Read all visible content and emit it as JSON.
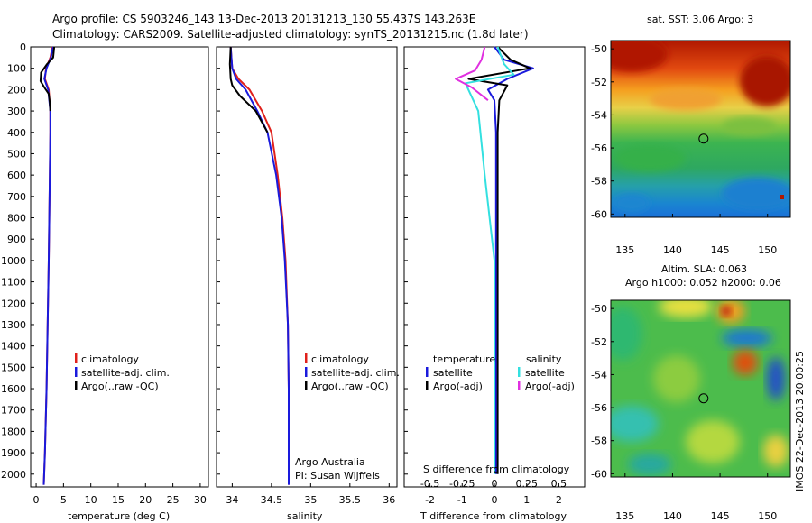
{
  "figure": {
    "title_line1": "Argo profile: CS 5903246_143 13-Dec-2013 20131213_130 55.437S 143.263E",
    "title_line2": "Climatology: CARS2009. Satellite-adjusted climatology: synTS_20131215.nc (1.8d later)",
    "side_stamp": "IMOS 22-Dec-2013 20:00:25"
  },
  "colors": {
    "climatology": "#e0201b",
    "satellite": "#1a1adc",
    "argo": "#000000",
    "salinity_satellite": "#33e0e0",
    "salinity_argo": "#e030e0"
  },
  "chart_data": [
    {
      "type": "line",
      "panel": "temperature",
      "xlabel": "temperature (deg C)",
      "ylabel": "",
      "xlim": [
        -1,
        31.5
      ],
      "ylim": [
        2060,
        0
      ],
      "xticks": [
        "0",
        "5",
        "10",
        "15",
        "20",
        "25",
        "30"
      ],
      "yticks": [
        "0",
        "100",
        "200",
        "300",
        "400",
        "500",
        "600",
        "700",
        "800",
        "900",
        "1000",
        "1100",
        "1200",
        "1300",
        "1400",
        "1500",
        "1600",
        "1700",
        "1800",
        "1900",
        "2000"
      ],
      "legend": [
        "climatology",
        "satellite-adj. clim.",
        "Argo(..raw -QC)"
      ],
      "series": [
        {
          "name": "climatology",
          "x": [
            3.0,
            2.6,
            1.8,
            1.6,
            2.3,
            2.6,
            2.6,
            2.5,
            2.4,
            2.3,
            2.1,
            1.9,
            1.6,
            1.4
          ],
          "y": [
            0,
            50,
            100,
            150,
            200,
            300,
            400,
            600,
            800,
            1000,
            1300,
            1600,
            1900,
            2050
          ]
        },
        {
          "name": "satellite-adj. clim.",
          "x": [
            3.1,
            2.7,
            1.9,
            1.5,
            2.2,
            2.6,
            2.6,
            2.5,
            2.4,
            2.3,
            2.1,
            1.9,
            1.6,
            1.4
          ],
          "y": [
            0,
            50,
            100,
            150,
            200,
            300,
            400,
            600,
            800,
            1000,
            1300,
            1600,
            1900,
            2050
          ]
        },
        {
          "name": "Argo(..raw -QC)",
          "x": [
            3.3,
            3.1,
            2.0,
            0.9,
            0.8,
            1.5,
            2.3,
            2.5,
            2.6
          ],
          "y": [
            0,
            50,
            80,
            120,
            160,
            190,
            220,
            260,
            300
          ]
        }
      ]
    },
    {
      "type": "line",
      "panel": "salinity",
      "xlabel": "salinity",
      "ylabel": "",
      "xlim": [
        33.8,
        36.1
      ],
      "ylim": [
        2060,
        0
      ],
      "xticks": [
        "34",
        "34.5",
        "35",
        "35.5",
        "36"
      ],
      "legend": [
        "climatology",
        "satellite-adj. clim.",
        "Argo(..raw -QC)"
      ],
      "annotation": [
        "Argo Australia",
        "PI: Susan Wijffels"
      ],
      "series": [
        {
          "name": "climatology",
          "x": [
            33.98,
            33.99,
            34.0,
            34.08,
            34.22,
            34.38,
            34.5,
            34.58,
            34.64,
            34.68,
            34.71,
            34.72,
            34.72,
            34.72
          ],
          "y": [
            0,
            50,
            100,
            150,
            200,
            300,
            400,
            600,
            800,
            1000,
            1300,
            1600,
            1900,
            2050
          ]
        },
        {
          "name": "satellite-adj. clim.",
          "x": [
            33.98,
            33.99,
            34.0,
            34.05,
            34.17,
            34.32,
            34.45,
            34.56,
            34.63,
            34.67,
            34.71,
            34.72,
            34.72,
            34.72
          ],
          "y": [
            0,
            50,
            100,
            150,
            200,
            300,
            400,
            600,
            800,
            1000,
            1300,
            1600,
            1900,
            2050
          ]
        },
        {
          "name": "Argo(..raw -QC)",
          "x": [
            33.98,
            33.97,
            33.98,
            34.0,
            34.1,
            34.3,
            34.45
          ],
          "y": [
            0,
            80,
            150,
            180,
            230,
            300,
            400
          ]
        }
      ]
    },
    {
      "type": "line",
      "panel": "differences",
      "xlabel": "T difference from climatology",
      "top_label": "S difference from climatology",
      "xlim": [
        -2.8,
        2.8
      ],
      "ylim": [
        2060,
        0
      ],
      "xticks": [
        "-2",
        "-1",
        "0",
        "1",
        "2"
      ],
      "sticks": [
        "-0.5",
        "-0.25",
        "0",
        "0.25",
        "0.5"
      ],
      "legend_left_title": "temperature",
      "legend_right_title": "salinity",
      "legend_left": [
        "satellite",
        "Argo(-adj)"
      ],
      "legend_right": [
        "satellite",
        "Argo(-adj)"
      ],
      "series": [
        {
          "name": "temperature satellite",
          "x": [
            0.0,
            0.3,
            1.2,
            0.4,
            -0.2,
            0.0,
            0.05,
            0.05,
            0.05
          ],
          "y": [
            0,
            60,
            100,
            150,
            200,
            250,
            400,
            1000,
            2000
          ]
        },
        {
          "name": "temperature Argo(-adj)",
          "x": [
            0.1,
            0.5,
            1.1,
            -0.8,
            0.4,
            0.15,
            0.1,
            0.1,
            0.1
          ],
          "y": [
            0,
            60,
            100,
            150,
            180,
            250,
            400,
            1000,
            2000
          ]
        },
        {
          "name": "salinity satellite",
          "x": [
            0.1,
            0.3,
            0.6,
            -0.9,
            -0.5,
            -0.3,
            0.0,
            0.0
          ],
          "y": [
            0,
            80,
            130,
            170,
            300,
            600,
            1000,
            2000
          ]
        },
        {
          "name": "salinity Argo(-adj)",
          "x": [
            -0.3,
            -0.4,
            -0.6,
            -1.2,
            -0.7,
            -0.2
          ],
          "y": [
            0,
            60,
            110,
            150,
            190,
            250
          ]
        }
      ]
    },
    {
      "type": "heatmap",
      "panel": "sst_map",
      "title": "sat. SST: 3.06 Argo: 3",
      "xticks": [
        "135",
        "140",
        "145",
        "150"
      ],
      "yticks": [
        "-50",
        "-52",
        "-54",
        "-56",
        "-58",
        "-60"
      ],
      "argo_position": {
        "lon": 143.263,
        "lat": -55.437
      }
    },
    {
      "type": "heatmap",
      "panel": "sla_map",
      "title_line1": "Altim. SLA: 0.063",
      "title_line2": "Argo h1000: 0.052 h2000: 0.06",
      "xticks": [
        "135",
        "140",
        "145",
        "150"
      ],
      "yticks": [
        "-50",
        "-52",
        "-54",
        "-56",
        "-58",
        "-60"
      ],
      "argo_position": {
        "lon": 143.263,
        "lat": -55.437
      }
    }
  ]
}
